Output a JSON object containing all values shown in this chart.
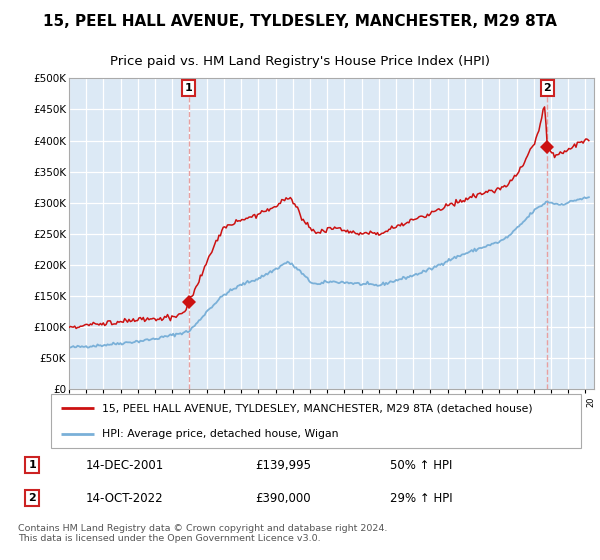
{
  "title": "15, PEEL HALL AVENUE, TYLDESLEY, MANCHESTER, M29 8TA",
  "subtitle": "Price paid vs. HM Land Registry's House Price Index (HPI)",
  "ylim": [
    0,
    500000
  ],
  "yticks": [
    0,
    50000,
    100000,
    150000,
    200000,
    250000,
    300000,
    350000,
    400000,
    450000,
    500000
  ],
  "ytick_labels": [
    "£0",
    "£50K",
    "£100K",
    "£150K",
    "£200K",
    "£250K",
    "£300K",
    "£350K",
    "£400K",
    "£450K",
    "£500K"
  ],
  "xlim_start": 1995.0,
  "xlim_end": 2025.5,
  "background_color": "#dce9f5",
  "grid_color": "#ffffff",
  "hpi_line_color": "#7ab0d8",
  "price_line_color": "#cc1111",
  "marker_color": "#cc1111",
  "vline_color": "#e8a0a0",
  "sale1_x": 2001.96,
  "sale1_y": 139995,
  "sale2_x": 2022.79,
  "sale2_y": 390000,
  "legend_line1": "15, PEEL HALL AVENUE, TYLDESLEY, MANCHESTER, M29 8TA (detached house)",
  "legend_line2": "HPI: Average price, detached house, Wigan",
  "annotation1_box": "1",
  "annotation1_date": "14-DEC-2001",
  "annotation1_price": "£139,995",
  "annotation1_hpi": "50% ↑ HPI",
  "annotation2_box": "2",
  "annotation2_date": "14-OCT-2022",
  "annotation2_price": "£390,000",
  "annotation2_hpi": "29% ↑ HPI",
  "footer": "Contains HM Land Registry data © Crown copyright and database right 2024.\nThis data is licensed under the Open Government Licence v3.0.",
  "title_fontsize": 11,
  "subtitle_fontsize": 9.5
}
